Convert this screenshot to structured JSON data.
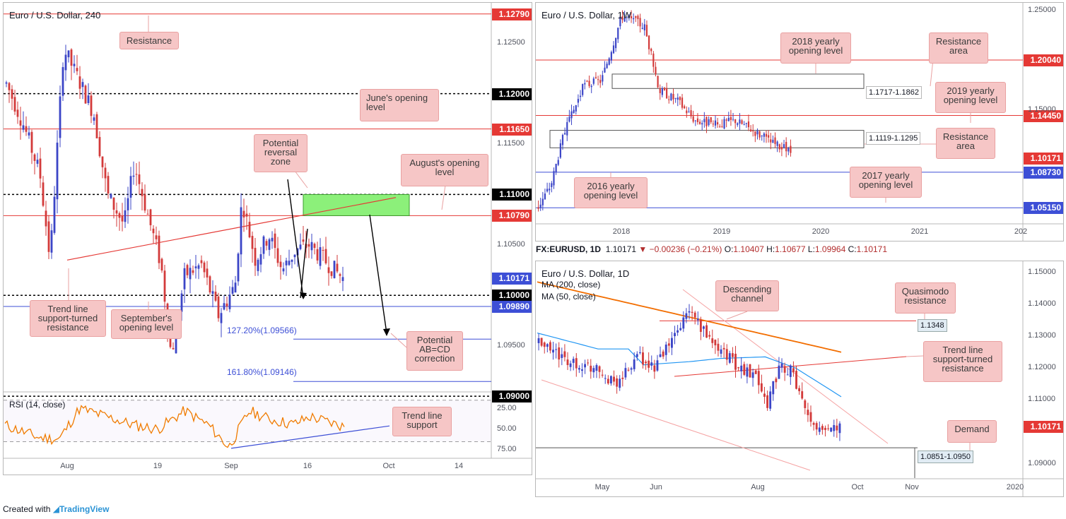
{
  "colors": {
    "bull": "#3b45c7",
    "bear": "#d33a3a",
    "res": "#e53935",
    "sup": "#3d4fd6",
    "rsi": "#f07b00",
    "zone": "#8cf07a",
    "ma200": "#f26d00",
    "ma50": "#2196f3",
    "callout": "#f6c6c6"
  },
  "chart_data": [
    {
      "type": "candlestick",
      "title": "Euro / U.S. Dollar, 240",
      "ylim": [
        1.0905,
        1.129
      ],
      "x_ticks": [
        "Aug",
        "19",
        "Sep",
        "16",
        "Oct",
        "14"
      ],
      "price_tags": [
        {
          "label": "1.12790",
          "value": 1.1279,
          "color": "#e53935"
        },
        {
          "label": "1.12000",
          "value": 1.12,
          "color": "#000000"
        },
        {
          "label": "1.11650",
          "value": 1.1165,
          "color": "#e53935"
        },
        {
          "label": "1.11000",
          "value": 1.11,
          "color": "#000000"
        },
        {
          "label": "1.10790",
          "value": 1.1079,
          "color": "#e53935"
        },
        {
          "label": "1.10171",
          "value": 1.10171,
          "color": "#3d4fd6"
        },
        {
          "label": "1.10000",
          "value": 1.1,
          "color": "#000000"
        },
        {
          "label": "1.09890",
          "value": 1.0989,
          "color": "#3d4fd6"
        },
        {
          "label": "1.09000",
          "value": 1.09,
          "color": "#000000"
        }
      ],
      "y_ticks": [
        "1.12500",
        "1.11500",
        "1.10500",
        "1.09500"
      ],
      "callouts": [
        "Resistance",
        "June's opening\nlevel",
        "Potential\nreversal\nzone",
        "August's opening\nlevel",
        "Trend line\nsupport-turned\nresistance",
        "September's\nopening level",
        "Potential\nAB=CD\ncorrection"
      ],
      "fib_levels": [
        {
          "label": "127.20%(1.09566)",
          "value": 1.09566
        },
        {
          "label": "161.80%(1.09146)",
          "value": 1.09146
        }
      ],
      "rsi": {
        "label": "RSI (14, close)",
        "levels": [
          75,
          50,
          25
        ],
        "y_ticks": [
          "75.00",
          "50.00",
          "25.00"
        ],
        "callout": "Trend line\nsupport"
      }
    },
    {
      "type": "candlestick",
      "title": "Euro / U.S. Dollar, 1W",
      "ylim": [
        1.036,
        1.258
      ],
      "x_ticks": [
        "2018",
        "2019",
        "2020",
        "2021",
        "202"
      ],
      "y_ticks": [
        "1.25000",
        "1.15000"
      ],
      "price_tags": [
        {
          "label": "1.20040",
          "value": 1.2004,
          "color": "#e53935"
        },
        {
          "label": "1.14450",
          "value": 1.1445,
          "color": "#e53935"
        },
        {
          "label": "1.10171",
          "value": 1.10171,
          "color": "#e53935"
        },
        {
          "label": "1.08730",
          "value": 1.0873,
          "color": "#3d4fd6"
        },
        {
          "label": "1.05150",
          "value": 1.0515,
          "color": "#3d4fd6"
        }
      ],
      "areas": [
        "1.1717-1.1862",
        "1.1119-1.1295"
      ],
      "callouts": [
        "2018 yearly\nopening level",
        "Resistance\narea",
        "2019 yearly\nopening level",
        "Resistance\narea",
        "2016 yearly\nopening level",
        "2017 yearly\nopening level"
      ]
    },
    {
      "type": "candlestick",
      "title": "Euro / U.S. Dollar, 1D",
      "ylim": [
        1.0855,
        1.1535
      ],
      "x_ticks": [
        "May",
        "Jun",
        "Aug",
        "Oct",
        "Nov",
        "2020"
      ],
      "y_ticks": [
        "1.15000",
        "1.14000",
        "1.13000",
        "1.12000",
        "1.11000",
        "1.09000"
      ],
      "legend": [
        "MA (200, close)",
        "MA (50, close)"
      ],
      "price_tags": [
        {
          "label": "1.10171",
          "value": 1.10171,
          "color": "#e53935"
        }
      ],
      "level_labels": [
        "1.1348",
        "1.0851-1.0950"
      ],
      "callouts": [
        "Descending\nchannel",
        "Quasimodo\nresistance",
        "Trend line\nsupport-turned\nresistance",
        "Demand"
      ]
    }
  ],
  "header": {
    "symbol": "FX:EURUSD, 1D",
    "price": "1.10171",
    "change": "−0.00236 (−0.21%)",
    "o_label": "O:",
    "o": "1.10407",
    "h_label": "H:",
    "h": "1.10677",
    "l_label": "L:",
    "l": "1.09964",
    "c_label": "C:",
    "c": "1.10171"
  },
  "footer": {
    "created": "Created with",
    "brand": "TradingView"
  }
}
